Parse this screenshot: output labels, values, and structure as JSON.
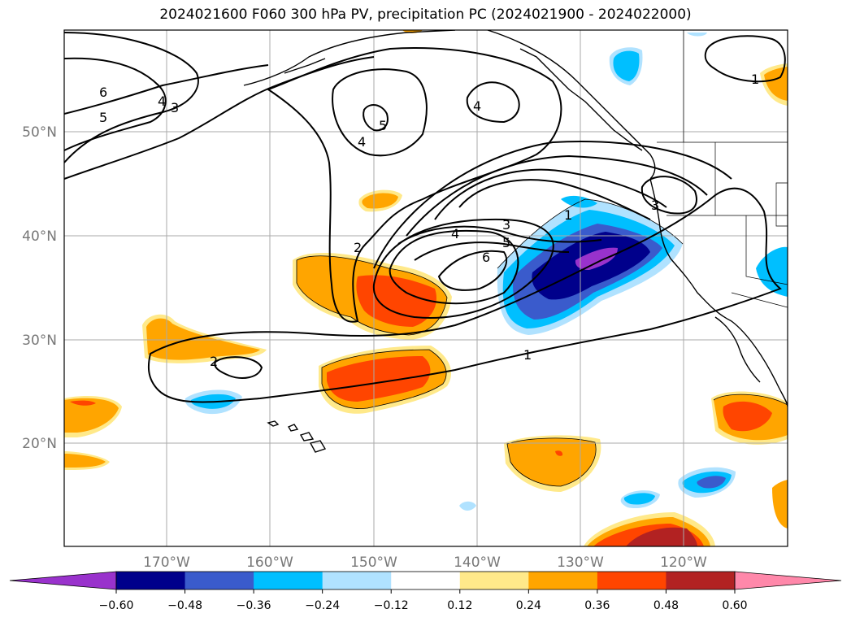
{
  "title": "2024021600 F060 300 hPa PV, precipitation PC (2024021900 - 2024022000)",
  "axes": {
    "lon_labels": [
      "170°W",
      "160°W",
      "150°W",
      "140°W",
      "130°W",
      "120°W"
    ],
    "lat_labels": [
      "50°N",
      "40°N",
      "30°N",
      "20°N"
    ]
  },
  "contour_labels": [
    {
      "text": "6"
    },
    {
      "text": "5"
    },
    {
      "text": "4"
    },
    {
      "text": "3"
    },
    {
      "text": "5"
    },
    {
      "text": "4"
    },
    {
      "text": "4"
    },
    {
      "text": "3"
    },
    {
      "text": "1"
    },
    {
      "text": "4"
    },
    {
      "text": "5"
    },
    {
      "text": "6"
    },
    {
      "text": "2"
    },
    {
      "text": "2"
    },
    {
      "text": "1"
    },
    {
      "text": "3"
    },
    {
      "text": "1"
    }
  ],
  "colorbar": {
    "ticks": [
      "−0.60",
      "−0.48",
      "−0.36",
      "−0.24",
      "−0.12",
      "0.12",
      "0.24",
      "0.36",
      "0.48",
      "0.60"
    ],
    "colors": [
      "#9932cc",
      "#00008b",
      "#3a5bcc",
      "#00bfff",
      "#b0e2ff",
      "#ffffff",
      "#ffe98a",
      "#ffa500",
      "#ff4500",
      "#b22222",
      "#ff88aa"
    ]
  },
  "shading_colors": {
    "neg_light": "#b0e2ff",
    "neg_1": "#00bfff",
    "neg_2": "#3a5bcc",
    "neg_3": "#00008b",
    "neg_4": "#9932cc",
    "pos_light": "#ffe98a",
    "pos_1": "#ffa500",
    "pos_2": "#ff4500",
    "pos_3": "#b22222"
  }
}
